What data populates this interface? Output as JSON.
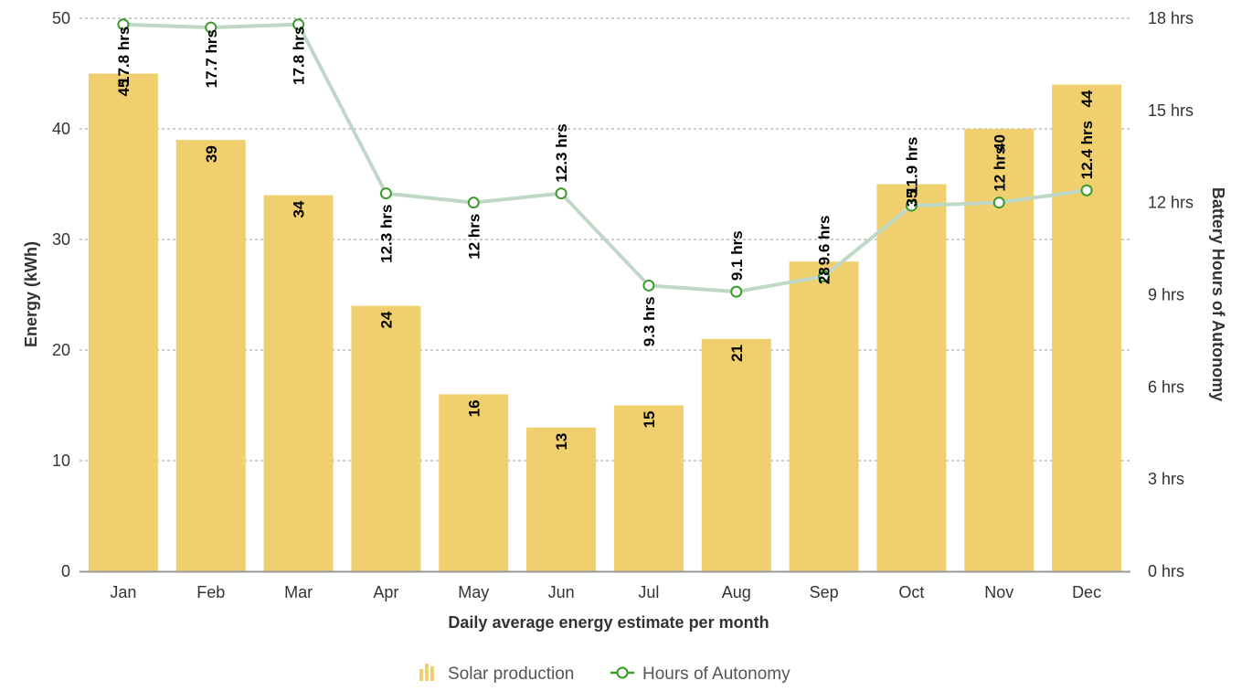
{
  "chart_data": {
    "type": "bar",
    "categories": [
      "Jan",
      "Feb",
      "Mar",
      "Apr",
      "May",
      "Jun",
      "Jul",
      "Aug",
      "Sep",
      "Oct",
      "Nov",
      "Dec"
    ],
    "series": [
      {
        "name": "Solar production",
        "type": "bar",
        "axis": "left",
        "values": [
          45,
          39,
          34,
          24,
          16,
          13,
          15,
          21,
          28,
          35,
          40,
          44
        ],
        "data_labels": [
          "45",
          "39",
          "34",
          "24",
          "16",
          "13",
          "15",
          "21",
          "28",
          "35",
          "40",
          "44"
        ],
        "color": "#f0cf6f"
      },
      {
        "name": "Hours of Autonomy",
        "type": "line",
        "axis": "right",
        "values": [
          17.8,
          17.7,
          17.8,
          12.3,
          12,
          12.3,
          9.3,
          9.1,
          9.6,
          11.9,
          12,
          12.4
        ],
        "data_labels": [
          "17.8 hrs",
          "17.7 hrs",
          "17.8 hrs",
          "12.3 hrs",
          "12 hrs",
          "12.3 hrs",
          "9.3 hrs",
          "9.1 hrs",
          "9.6 hrs",
          "11.9 hrs",
          "12 hrs",
          "12.4 hrs"
        ],
        "color": "#bfd8c8",
        "marker_color": "#3a9a2a"
      }
    ],
    "xlabel": "Daily average energy estimate per month",
    "ylabel": "Energy (kWh)",
    "ylabel_right": "Battery Hours of Autonomy",
    "ylim": [
      0,
      50
    ],
    "yticks": [
      "0",
      "10",
      "20",
      "30",
      "40",
      "50"
    ],
    "ylim_right": [
      0,
      18
    ],
    "yticks_right": [
      "0 hrs",
      "3 hrs",
      "6 hrs",
      "9 hrs",
      "12 hrs",
      "15 hrs",
      "18 hrs"
    ],
    "grid": true,
    "legend_position": "bottom-center"
  }
}
